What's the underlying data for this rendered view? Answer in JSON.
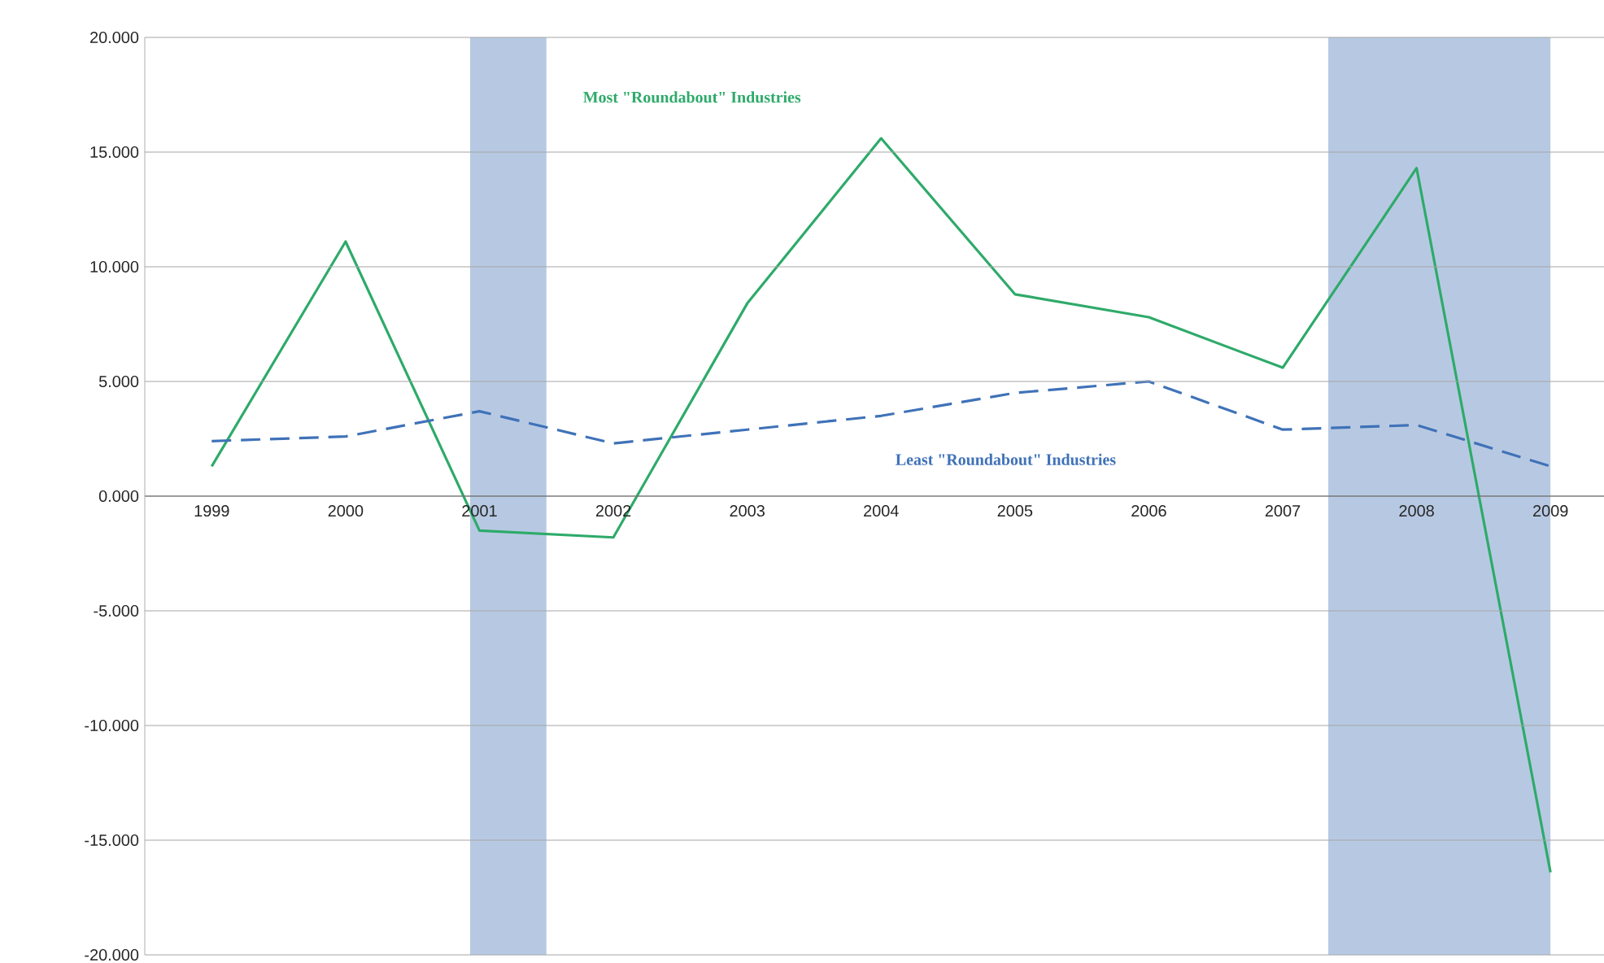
{
  "chart_data": {
    "type": "line",
    "x": [
      1999,
      2000,
      2001,
      2002,
      2003,
      2004,
      2005,
      2006,
      2007,
      2008,
      2009
    ],
    "series": [
      {
        "color": "#2eaa6a",
        "line_style": "solid",
        "values": [
          1.3,
          11.1,
          -1.5,
          -1.8,
          8.4,
          15.6,
          8.8,
          7.8,
          5.6,
          14.3,
          -16.4
        ]
      },
      {
        "color": "#3f72b8",
        "line_style": "dashed",
        "values": [
          2.4,
          2.6,
          3.7,
          2.3,
          2.9,
          3.5,
          4.5,
          5.0,
          2.9,
          3.1,
          1.3
        ]
      }
    ],
    "xlim": [
      1998.5,
      2009.4
    ],
    "xticks": [
      1999,
      2000,
      2001,
      2002,
      2003,
      2004,
      2005,
      2006,
      2007,
      2008,
      2009
    ],
    "ylim": [
      -20,
      20
    ],
    "yticks": [
      {
        "value": -20,
        "label": "-20.000"
      },
      {
        "value": -15,
        "label": "-15.000"
      },
      {
        "value": -10,
        "label": "-10.000"
      },
      {
        "value": -5,
        "label": "-5.000"
      },
      {
        "value": 0,
        "label": "0.000"
      },
      {
        "value": 5,
        "label": "5.000"
      },
      {
        "value": 10,
        "label": "10.000"
      },
      {
        "value": 15,
        "label": "15.000"
      },
      {
        "value": 20,
        "label": "20.000"
      }
    ],
    "bands": [
      {
        "axis": "x",
        "from": 2000.93,
        "to": 2001.5,
        "color": "#b7c9e2"
      },
      {
        "axis": "x",
        "from": 2007.34,
        "to": 2009.0,
        "color": "#b7c9e2"
      }
    ],
    "annotations": [
      "Most \"Roundabout\" Industries",
      "Least \"Roundabout\" Industries"
    ],
    "grid": "y"
  }
}
